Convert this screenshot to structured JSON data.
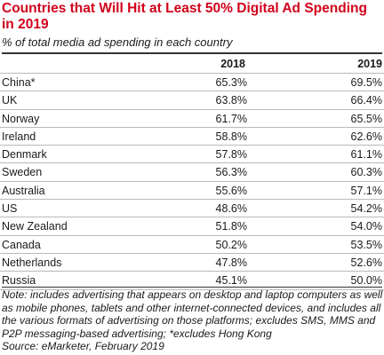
{
  "chart_data": {
    "type": "table",
    "title": "Countries that Will Hit at Least 50% Digital Ad Spending in 2019",
    "subtitle": "% of total media ad spending in each country",
    "columns": [
      "2018",
      "2019"
    ],
    "rows": [
      {
        "country": "China*",
        "v2018": "65.3%",
        "v2019": "69.5%"
      },
      {
        "country": "UK",
        "v2018": "63.8%",
        "v2019": "66.4%"
      },
      {
        "country": "Norway",
        "v2018": "61.7%",
        "v2019": "65.5%"
      },
      {
        "country": "Ireland",
        "v2018": "58.8%",
        "v2019": "62.6%"
      },
      {
        "country": "Denmark",
        "v2018": "57.8%",
        "v2019": "61.1%"
      },
      {
        "country": "Sweden",
        "v2018": "56.3%",
        "v2019": "60.3%"
      },
      {
        "country": "Australia",
        "v2018": "55.6%",
        "v2019": "57.1%"
      },
      {
        "country": "US",
        "v2018": "48.6%",
        "v2019": "54.2%"
      },
      {
        "country": "New Zealand",
        "v2018": "51.8%",
        "v2019": "54.0%"
      },
      {
        "country": "Canada",
        "v2018": "50.2%",
        "v2019": "53.5%"
      },
      {
        "country": "Netherlands",
        "v2018": "47.8%",
        "v2019": "52.6%"
      },
      {
        "country": "Russia",
        "v2018": "45.1%",
        "v2019": "50.0%"
      }
    ],
    "note": "Note: includes advertising that appears on desktop and laptop computers as well as mobile phones, tablets and other internet-connected devices, and includes all the various formats of advertising on those platforms; excludes SMS, MMS and P2P messaging-based advertising; *excludes Hong Kong",
    "source": "Source: eMarketer, February 2019",
    "title_color": "#d0021b"
  }
}
